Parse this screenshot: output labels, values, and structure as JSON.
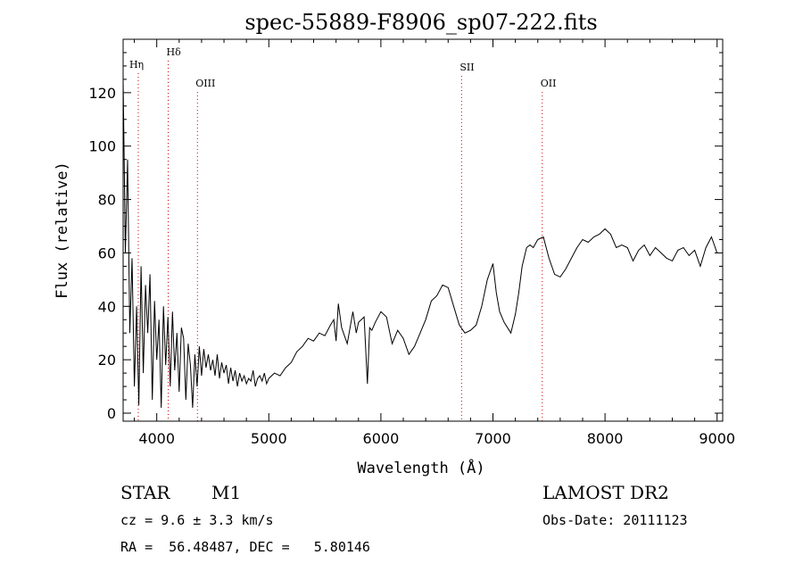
{
  "chart_data": {
    "type": "line",
    "title": "spec-55889-F8906_sp07-222.fits",
    "xlabel": "Wavelength (Å)",
    "ylabel": "Flux (relative)",
    "xlim": [
      3700,
      9050
    ],
    "ylim": [
      -3,
      140
    ],
    "x_ticks": [
      4000,
      5000,
      6000,
      7000,
      8000,
      9000
    ],
    "y_ticks": [
      0,
      20,
      40,
      60,
      80,
      100,
      120
    ],
    "grid": false,
    "series": [
      {
        "x": [
          3700,
          3720,
          3740,
          3760,
          3780,
          3800,
          3820,
          3840,
          3860,
          3880,
          3900,
          3920,
          3940,
          3960,
          3980,
          4000,
          4020,
          4040,
          4060,
          4080,
          4100,
          4120,
          4140,
          4160,
          4180,
          4200,
          4220,
          4240,
          4260,
          4280,
          4300,
          4320,
          4340,
          4360,
          4380,
          4400,
          4420,
          4440,
          4460,
          4480,
          4500,
          4520,
          4540,
          4560,
          4580,
          4600,
          4620,
          4640,
          4660,
          4680,
          4700,
          4720,
          4740,
          4760,
          4780,
          4800,
          4820,
          4840,
          4860,
          4880,
          4900,
          4920,
          4940,
          4960,
          4980,
          5000,
          5050,
          5100,
          5150,
          5200,
          5250,
          5300,
          5350,
          5400,
          5450,
          5500,
          5550,
          5580,
          5600,
          5620,
          5650,
          5700,
          5750,
          5780,
          5800,
          5850,
          5880,
          5900,
          5920,
          5950,
          6000,
          6050,
          6100,
          6150,
          6200,
          6250,
          6300,
          6350,
          6400,
          6450,
          6500,
          6550,
          6600,
          6650,
          6700,
          6750,
          6800,
          6850,
          6900,
          6950,
          7000,
          7030,
          7060,
          7100,
          7130,
          7160,
          7200,
          7230,
          7260,
          7300,
          7330,
          7360,
          7400,
          7450,
          7500,
          7550,
          7600,
          7650,
          7700,
          7750,
          7800,
          7850,
          7900,
          7950,
          8000,
          8050,
          8100,
          8150,
          8200,
          8250,
          8300,
          8350,
          8400,
          8450,
          8500,
          8550,
          8600,
          8650,
          8700,
          8750,
          8800,
          8850,
          8900,
          8950,
          9000
        ],
        "y": [
          125,
          60,
          95,
          30,
          58,
          10,
          40,
          3,
          55,
          15,
          48,
          30,
          52,
          5,
          42,
          20,
          35,
          2,
          40,
          18,
          36,
          10,
          38,
          16,
          30,
          8,
          32,
          28,
          5,
          26,
          18,
          2,
          22,
          10,
          25,
          14,
          24,
          17,
          22,
          16,
          20,
          14,
          22,
          13,
          19,
          15,
          18,
          11,
          17,
          12,
          16,
          10,
          15,
          12,
          14,
          11,
          13,
          12,
          16,
          10,
          13,
          14,
          12,
          15,
          11,
          13,
          15,
          14,
          17,
          19,
          23,
          25,
          28,
          27,
          30,
          29,
          33,
          35,
          27,
          41,
          32,
          26,
          38,
          30,
          34,
          36,
          11,
          32,
          31,
          34,
          38,
          36,
          26,
          31,
          28,
          22,
          25,
          30,
          35,
          42,
          44,
          48,
          47,
          40,
          33,
          30,
          31,
          33,
          40,
          50,
          56,
          45,
          38,
          34,
          32,
          30,
          37,
          45,
          55,
          62,
          63,
          62,
          65,
          66,
          58,
          52,
          51,
          54,
          58,
          62,
          65,
          64,
          66,
          67,
          69,
          67,
          62,
          63,
          62,
          57,
          61,
          63,
          59,
          62,
          60,
          58,
          57,
          61,
          62,
          59,
          61,
          55,
          62,
          66,
          60
        ]
      }
    ],
    "annotations": [
      "Hη",
      "Hδ",
      "OIII",
      "SII",
      "OII"
    ],
    "line_markers": [
      3835,
      4102,
      4363,
      6720,
      7440
    ]
  },
  "info": {
    "class_label": "STAR",
    "subclass": "M1",
    "survey": "LAMOST DR2",
    "cz_text": "cz = 9.6 ± 3.3 km/s",
    "obs_date": "Obs-Date: 20111123",
    "coords": "RA =  56.48487, DEC =   5.80146"
  }
}
